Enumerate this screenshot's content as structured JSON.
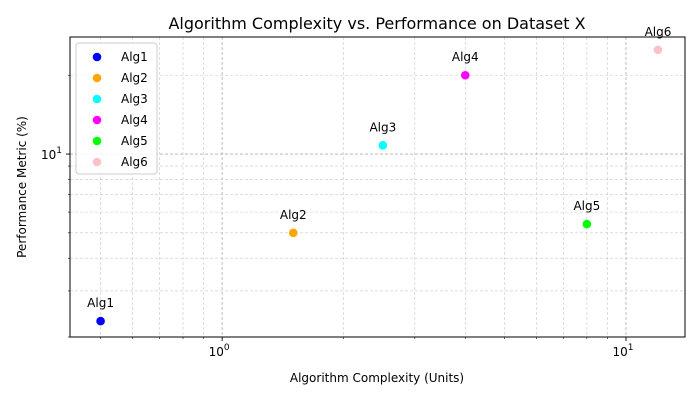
{
  "chart_data": {
    "type": "scatter",
    "title": "Algorithm Complexity vs. Performance on Dataset X",
    "xlabel": "Algorithm Complexity (Units)",
    "ylabel": "Performance Metric (%)",
    "xscale": "log",
    "yscale": "log",
    "xlim": [
      0.42,
      14
    ],
    "ylim": [
      2.0,
      28
    ],
    "x_ticks": [
      {
        "value": 1,
        "label": "10^0"
      },
      {
        "value": 10,
        "label": "10^1"
      }
    ],
    "y_ticks": [
      {
        "value": 10,
        "label": "10^1"
      }
    ],
    "grid": true,
    "legend_position": "top-left",
    "series": [
      {
        "name": "Alg1",
        "x": 0.5,
        "y": 2.3,
        "color": "#0000ff"
      },
      {
        "name": "Alg2",
        "x": 1.5,
        "y": 5.0,
        "color": "#ffa500"
      },
      {
        "name": "Alg3",
        "x": 2.5,
        "y": 10.8,
        "color": "#00ffff"
      },
      {
        "name": "Alg4",
        "x": 4.0,
        "y": 20.0,
        "color": "#ff00ff"
      },
      {
        "name": "Alg5",
        "x": 8.0,
        "y": 5.4,
        "color": "#00ff00"
      },
      {
        "name": "Alg6",
        "x": 12.0,
        "y": 25.0,
        "color": "#ffc0cb"
      }
    ]
  }
}
